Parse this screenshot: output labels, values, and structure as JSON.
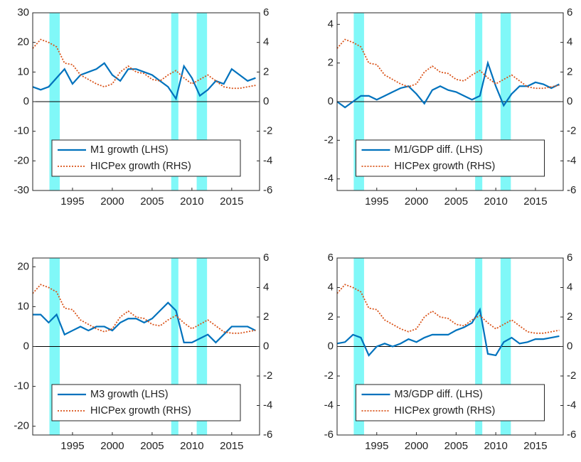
{
  "chart_data": [
    {
      "type": "line",
      "x": [
        1990,
        1991,
        1992,
        1993,
        1994,
        1995,
        1996,
        1997,
        1998,
        1999,
        2000,
        2001,
        2002,
        2003,
        2004,
        2005,
        2006,
        2007,
        2008,
        2009,
        2010,
        2011,
        2012,
        2013,
        2014,
        2015,
        2016,
        2017,
        2018
      ],
      "xlim": [
        1990,
        2018.5
      ],
      "xticks": [
        1995,
        2000,
        2005,
        2010,
        2015
      ],
      "ylim": [
        -30,
        30
      ],
      "yticks": [
        -30,
        -20,
        -10,
        0,
        10,
        20,
        30
      ],
      "y2lim": [
        -6,
        6
      ],
      "y2ticks": [
        -6,
        -4,
        -2,
        0,
        2,
        4,
        6
      ],
      "shaded_periods": [
        [
          1992.1,
          1993.4
        ],
        [
          2007.4,
          2008.3
        ],
        [
          2010.6,
          2011.9
        ]
      ],
      "shade_color": "#80f8f8",
      "legend": "lower center",
      "series": [
        {
          "name": "M1 growth (LHS)",
          "color": "#0072bd",
          "style": "solid",
          "values": [
            5,
            4,
            5,
            8,
            11,
            6,
            9,
            10,
            11,
            13,
            9,
            7,
            11,
            11,
            10,
            9,
            7,
            5,
            1,
            12,
            8,
            2,
            4,
            7,
            6,
            11,
            9,
            7,
            8
          ]
        },
        {
          "name": "HICPex growth (RHS)",
          "color": "#d95319",
          "style": "dotted",
          "axis": "y2",
          "values": [
            3.6,
            4.2,
            4.0,
            3.7,
            2.6,
            2.5,
            1.8,
            1.5,
            1.2,
            1.0,
            1.2,
            2.0,
            2.4,
            2.0,
            1.9,
            1.5,
            1.4,
            1.8,
            2.1,
            1.6,
            1.2,
            1.5,
            1.8,
            1.4,
            1.0,
            0.9,
            0.9,
            1.0,
            1.1
          ]
        }
      ]
    },
    {
      "type": "line",
      "x": [
        1990,
        1991,
        1992,
        1993,
        1994,
        1995,
        1996,
        1997,
        1998,
        1999,
        2000,
        2001,
        2002,
        2003,
        2004,
        2005,
        2006,
        2007,
        2008,
        2009,
        2010,
        2011,
        2012,
        2013,
        2014,
        2015,
        2016,
        2017,
        2018
      ],
      "xlim": [
        1990,
        2018.5
      ],
      "xticks": [
        1995,
        2000,
        2005,
        2010,
        2015
      ],
      "ylim": [
        -4.6,
        4.6
      ],
      "yticks": [
        -4,
        -2,
        0,
        2,
        4
      ],
      "y2lim": [
        -6,
        6
      ],
      "y2ticks": [
        -6,
        -4,
        -2,
        0,
        2,
        4,
        6
      ],
      "shaded_periods": [
        [
          1992.1,
          1993.4
        ],
        [
          2007.4,
          2008.3
        ],
        [
          2010.6,
          2011.9
        ]
      ],
      "shade_color": "#80f8f8",
      "legend": "lower center",
      "series": [
        {
          "name": "M1/GDP diff. (LHS)",
          "color": "#0072bd",
          "style": "solid",
          "values": [
            0,
            -0.3,
            0,
            0.3,
            0.3,
            0.1,
            0.3,
            0.5,
            0.7,
            0.8,
            0.4,
            -0.1,
            0.6,
            0.8,
            0.6,
            0.5,
            0.3,
            0.1,
            0.3,
            2.0,
            0.8,
            -0.2,
            0.4,
            0.8,
            0.8,
            1.0,
            0.9,
            0.7,
            0.9
          ]
        },
        {
          "name": "HICPex growth (RHS)",
          "color": "#d95319",
          "style": "dotted",
          "axis": "y2",
          "values": [
            3.6,
            4.2,
            4.0,
            3.7,
            2.6,
            2.5,
            1.8,
            1.5,
            1.2,
            1.0,
            1.2,
            2.0,
            2.4,
            2.0,
            1.9,
            1.5,
            1.4,
            1.8,
            2.1,
            1.6,
            1.2,
            1.5,
            1.8,
            1.4,
            1.0,
            0.9,
            0.9,
            1.0,
            1.1
          ]
        }
      ]
    },
    {
      "type": "line",
      "x": [
        1990,
        1991,
        1992,
        1993,
        1994,
        1995,
        1996,
        1997,
        1998,
        1999,
        2000,
        2001,
        2002,
        2003,
        2004,
        2005,
        2006,
        2007,
        2008,
        2009,
        2010,
        2011,
        2012,
        2013,
        2014,
        2015,
        2016,
        2017,
        2018
      ],
      "xlim": [
        1990,
        2018.5
      ],
      "xticks": [
        1995,
        2000,
        2005,
        2010,
        2015
      ],
      "ylim": [
        -22.2,
        22.2
      ],
      "yticks": [
        -20,
        -10,
        0,
        10,
        20
      ],
      "y2lim": [
        -6,
        6
      ],
      "y2ticks": [
        -6,
        -4,
        -2,
        0,
        2,
        4,
        6
      ],
      "shaded_periods": [
        [
          1992.1,
          1993.4
        ],
        [
          2007.4,
          2008.3
        ],
        [
          2010.6,
          2011.9
        ]
      ],
      "shade_color": "#80f8f8",
      "legend": "lower center",
      "series": [
        {
          "name": "M3 growth (LHS)",
          "color": "#0072bd",
          "style": "solid",
          "values": [
            8,
            8,
            6,
            8,
            3,
            4,
            5,
            4,
            5,
            5,
            4,
            6,
            7,
            7,
            6,
            7,
            9,
            11,
            9,
            1,
            1,
            2,
            3,
            1,
            3,
            5,
            5,
            5,
            4
          ]
        },
        {
          "name": "HICPex growth (RHS)",
          "color": "#d95319",
          "style": "dotted",
          "axis": "y2",
          "values": [
            3.6,
            4.2,
            4.0,
            3.7,
            2.6,
            2.5,
            1.8,
            1.5,
            1.2,
            1.0,
            1.2,
            2.0,
            2.4,
            2.0,
            1.9,
            1.5,
            1.4,
            1.8,
            2.1,
            1.6,
            1.2,
            1.5,
            1.8,
            1.4,
            1.0,
            0.9,
            0.9,
            1.0,
            1.1
          ]
        }
      ]
    },
    {
      "type": "line",
      "x": [
        1990,
        1991,
        1992,
        1993,
        1994,
        1995,
        1996,
        1997,
        1998,
        1999,
        2000,
        2001,
        2002,
        2003,
        2004,
        2005,
        2006,
        2007,
        2008,
        2009,
        2010,
        2011,
        2012,
        2013,
        2014,
        2015,
        2016,
        2017,
        2018
      ],
      "xlim": [
        1990,
        2018.5
      ],
      "xticks": [
        1995,
        2000,
        2005,
        2010,
        2015
      ],
      "ylim": [
        -6,
        6
      ],
      "yticks": [
        -6,
        -4,
        -2,
        0,
        2,
        4,
        6
      ],
      "y2lim": [
        -6,
        6
      ],
      "y2ticks": [
        -6,
        -4,
        -2,
        0,
        2,
        4,
        6
      ],
      "shaded_periods": [
        [
          1992.1,
          1993.4
        ],
        [
          2007.4,
          2008.3
        ],
        [
          2010.6,
          2011.9
        ]
      ],
      "shade_color": "#80f8f8",
      "legend": "lower center",
      "series": [
        {
          "name": "M3/GDP diff. (LHS)",
          "color": "#0072bd",
          "style": "solid",
          "values": [
            0.2,
            0.3,
            0.8,
            0.6,
            -0.6,
            0,
            0.2,
            0,
            0.2,
            0.5,
            0.3,
            0.6,
            0.8,
            0.8,
            0.8,
            1.1,
            1.3,
            1.6,
            2.5,
            -0.5,
            -0.6,
            0.3,
            0.6,
            0.2,
            0.3,
            0.5,
            0.5,
            0.6,
            0.7
          ]
        },
        {
          "name": "HICPex growth (RHS)",
          "color": "#d95319",
          "style": "dotted",
          "axis": "y2",
          "values": [
            3.6,
            4.2,
            4.0,
            3.7,
            2.6,
            2.5,
            1.8,
            1.5,
            1.2,
            1.0,
            1.2,
            2.0,
            2.4,
            2.0,
            1.9,
            1.5,
            1.4,
            1.8,
            2.1,
            1.6,
            1.2,
            1.5,
            1.8,
            1.4,
            1.0,
            0.9,
            0.9,
            1.0,
            1.1
          ]
        }
      ]
    }
  ]
}
